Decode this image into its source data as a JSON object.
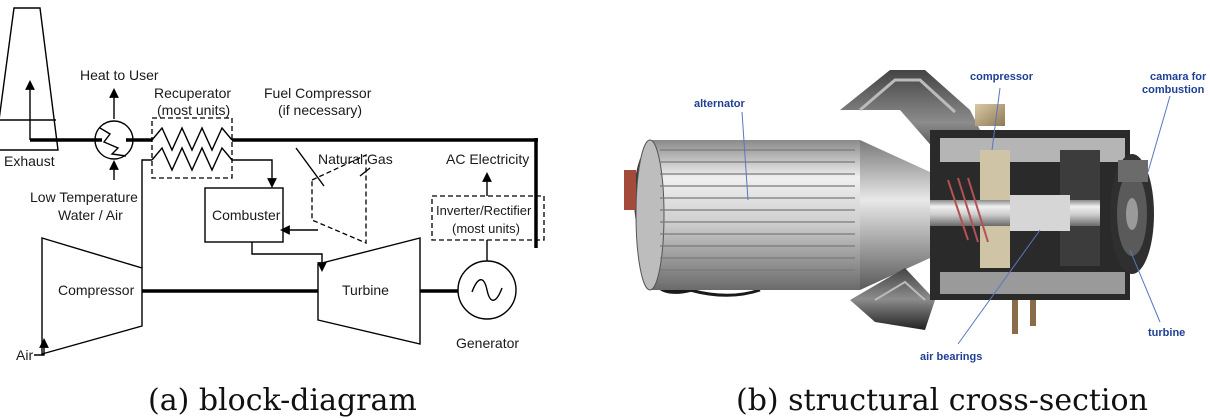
{
  "block_diagram": {
    "labels": {
      "exhaust": "Exhaust",
      "heat_to_user": "Heat to User",
      "low_temp_line1": "Low Temperature",
      "low_temp_line2": "Water / Air",
      "recuperator_line1": "Recuperator",
      "recuperator_line2": "(most units)",
      "fuel_compressor_line1": "Fuel Compressor",
      "fuel_compressor_line2": "(if necessary)",
      "natural_gas": "Natural Gas",
      "ac_electricity": "AC Electricity",
      "inverter_line1": "Inverter/Rectifier",
      "inverter_line2": "(most units)",
      "combuster": "Combuster",
      "compressor": "Compressor",
      "turbine": "Turbine",
      "generator": "Generator",
      "air": "Air"
    },
    "caption": "(a) block-diagram"
  },
  "cross_section": {
    "callouts": {
      "alternator": "alternator",
      "compressor": "compressor",
      "camara_line1": "camara for",
      "camara_line2": "combustion",
      "air_bearings": "air bearings",
      "turbine": "turbine"
    },
    "caption": "(b) structural cross-section"
  },
  "colors": {
    "line": "#000000",
    "callout_text": "#1f3f95",
    "metal_light": "#e4e4e4",
    "metal_dark": "#2a2a2a"
  }
}
